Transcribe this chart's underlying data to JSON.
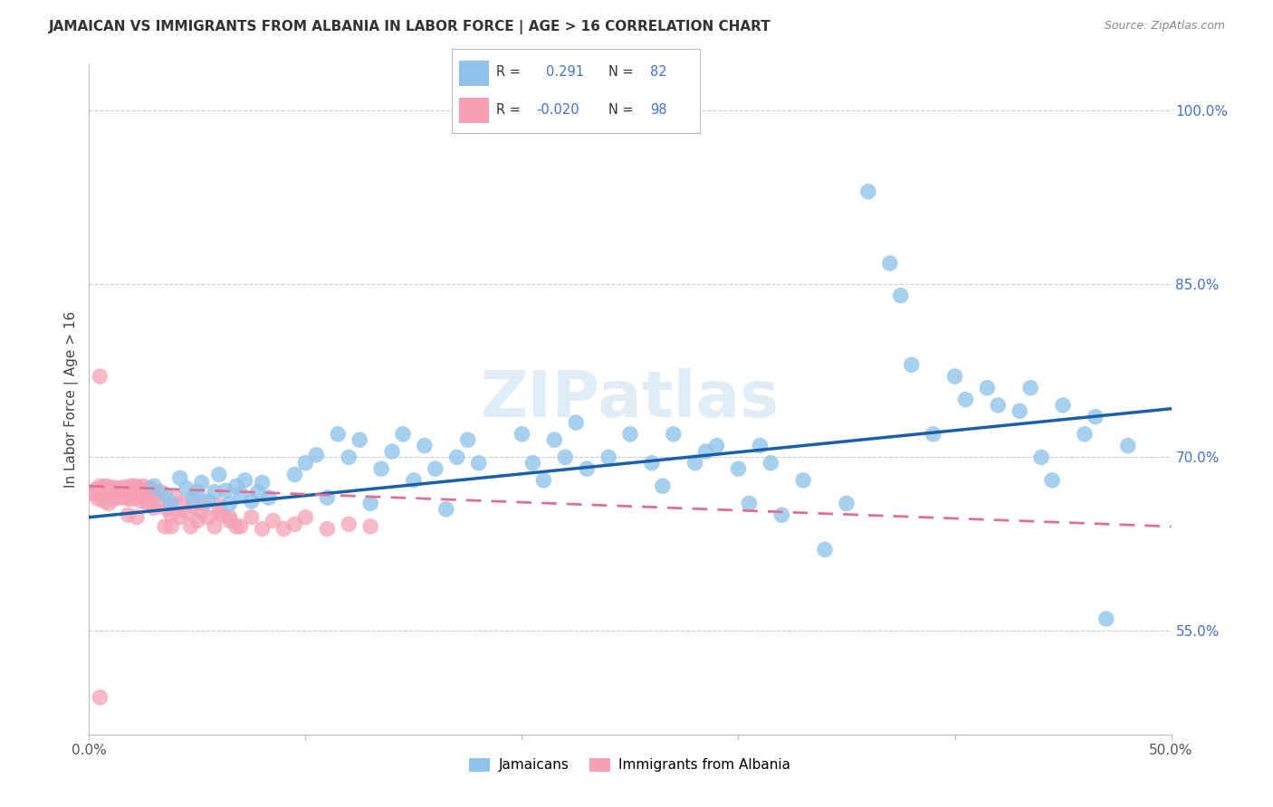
{
  "title": "JAMAICAN VS IMMIGRANTS FROM ALBANIA IN LABOR FORCE | AGE > 16 CORRELATION CHART",
  "source": "Source: ZipAtlas.com",
  "ylabel": "In Labor Force | Age > 16",
  "xlim": [
    0.0,
    0.5
  ],
  "ylim": [
    0.46,
    1.04
  ],
  "yticks_right": [
    0.55,
    0.7,
    0.85,
    1.0
  ],
  "ytick_labels_right": [
    "55.0%",
    "70.0%",
    "85.0%",
    "100.0%"
  ],
  "blue_R": 0.291,
  "blue_N": 82,
  "pink_R": -0.02,
  "pink_N": 98,
  "blue_color": "#91c3ea",
  "pink_color": "#f5a0b5",
  "trend_blue_color": "#1a5fa8",
  "trend_pink_color": "#e07090",
  "watermark": "ZIPatlas",
  "legend_label_blue": "Jamaicans",
  "legend_label_pink": "Immigrants from Albania",
  "background_color": "#ffffff",
  "grid_color": "#cccccc",
  "blue_trend_x0": 0.0,
  "blue_trend_y0": 0.648,
  "blue_trend_x1": 0.5,
  "blue_trend_y1": 0.742,
  "pink_trend_x0": 0.0,
  "pink_trend_y0": 0.675,
  "pink_trend_x1": 0.5,
  "pink_trend_y1": 0.64
}
